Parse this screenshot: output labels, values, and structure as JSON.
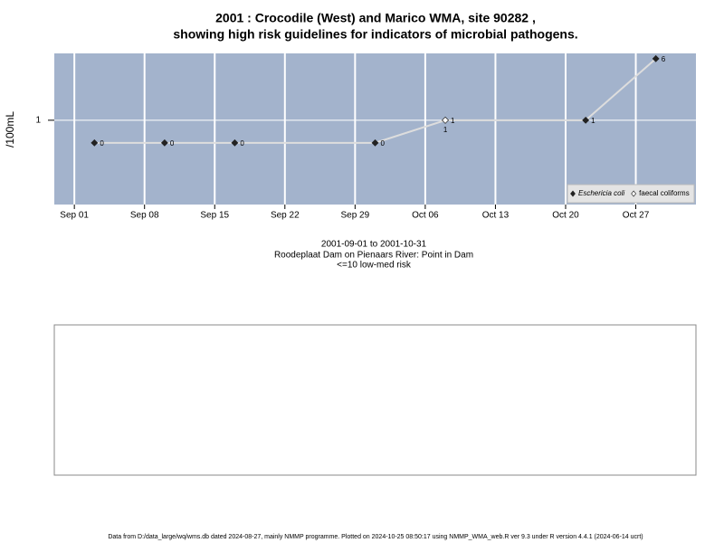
{
  "chart_data": {
    "type": "line",
    "title": "2001 : Crocodile (West) and Marico WMA, site 90282 ,",
    "subtitle": "showing high risk guidelines for indicators of microbial pathogens.",
    "ylabel": "/100mL",
    "notes": [
      "2001-09-01 to 2001-10-31",
      "Roodeplaat Dam on Pienaars River: Point in Dam",
      "<=10 low-med risk"
    ],
    "x": [
      "2001-09-03",
      "2001-09-10",
      "2001-09-17",
      "2001-10-01",
      "2001-10-08",
      "2001-10-22",
      "2001-10-29"
    ],
    "series": [
      {
        "name": "Eschericia coli",
        "color": "#222222",
        "values": [
          0,
          0,
          0,
          0,
          1,
          1,
          6
        ]
      },
      {
        "name": "faecal coliforms",
        "color": "#ffffff",
        "values": [
          null,
          null,
          null,
          null,
          1,
          null,
          null
        ]
      }
    ],
    "xlim": [
      "2001-08-30",
      "2001-11-02"
    ],
    "xticks": [
      {
        "value": "2001-09-01",
        "label": "Sep 01"
      },
      {
        "value": "2001-09-08",
        "label": "Sep 08"
      },
      {
        "value": "2001-09-15",
        "label": "Sep 15"
      },
      {
        "value": "2001-09-22",
        "label": "Sep 22"
      },
      {
        "value": "2001-09-29",
        "label": "Sep 29"
      },
      {
        "value": "2001-10-06",
        "label": "Oct 06"
      },
      {
        "value": "2001-10-13",
        "label": "Oct 13"
      },
      {
        "value": "2001-10-20",
        "label": "Oct 20"
      },
      {
        "value": "2001-10-27",
        "label": "Oct 27"
      }
    ],
    "ylim": [
      0.086,
      7
    ],
    "yticks": [
      1
    ],
    "log_scale": true,
    "grid": true,
    "legend": "bottom-right",
    "panel_color": "#a3b3cc",
    "line_color": "#dddddd"
  },
  "footer": "Data from D:/data_large/wq/wms.db dated 2024-08-27, mainly NMMP programme. Plotted on 2024-10-25 08:50:17 using NMMP_WMA_web.R ver 9.3 under R version 4.4.1 (2024-06-14 ucrt)"
}
